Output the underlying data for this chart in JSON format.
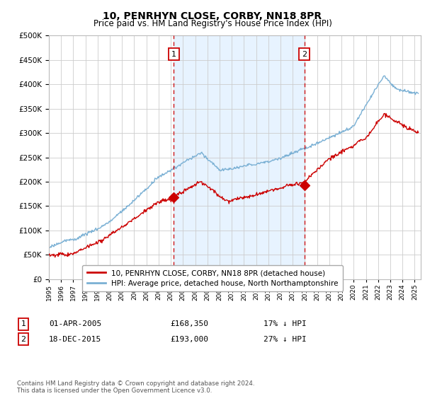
{
  "title": "10, PENRHYN CLOSE, CORBY, NN18 8PR",
  "subtitle": "Price paid vs. HM Land Registry's House Price Index (HPI)",
  "sale1_date": "01-APR-2005",
  "sale1_price": 168350,
  "sale1_pct": "17% ↓ HPI",
  "sale2_date": "18-DEC-2015",
  "sale2_price": 193000,
  "sale2_pct": "27% ↓ HPI",
  "legend_red": "10, PENRHYN CLOSE, CORBY, NN18 8PR (detached house)",
  "legend_blue": "HPI: Average price, detached house, North Northamptonshire",
  "footnote": "Contains HM Land Registry data © Crown copyright and database right 2024.\nThis data is licensed under the Open Government Licence v3.0.",
  "red_color": "#cc0000",
  "blue_color": "#7ab0d4",
  "shade_color": "#ddeeff",
  "vline_color": "#cc0000",
  "ylim": [
    0,
    500000
  ],
  "yticks": [
    0,
    50000,
    100000,
    150000,
    200000,
    250000,
    300000,
    350000,
    400000,
    450000,
    500000
  ],
  "sale1_x": 2005.25,
  "sale2_x": 2015.96,
  "xmin": 1995,
  "xmax": 2025.5,
  "background_color": "#ffffff",
  "grid_color": "#cccccc"
}
